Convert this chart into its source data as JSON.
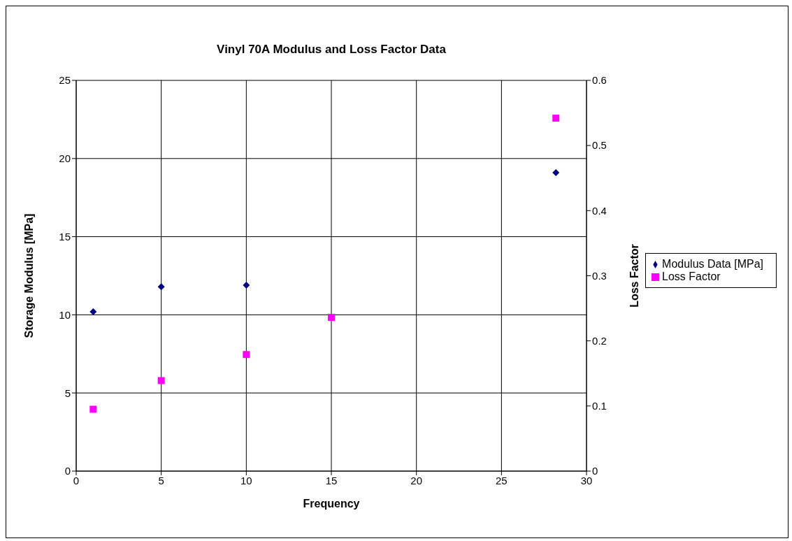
{
  "chart_data": {
    "type": "scatter",
    "title": "Vinyl 70A Modulus and Loss Factor Data",
    "xlabel": "Frequency",
    "ylabel": "Storage Modulus [MPa]",
    "y2label": "Loss Factor",
    "x": [
      1,
      5,
      10,
      15,
      28.2
    ],
    "series": [
      {
        "name": "Modulus Data [MPa]",
        "color": "#000080",
        "marker": "diamond",
        "values": [
          10.2,
          11.8,
          11.9,
          null,
          19.1
        ]
      },
      {
        "name": "Loss Factor",
        "color": "#ff00ff",
        "marker": "square",
        "axis": "y2",
        "values": [
          0.095,
          0.139,
          0.179,
          0.236,
          0.542
        ]
      }
    ],
    "xlim": [
      0,
      30
    ],
    "xticks": [
      0,
      5,
      10,
      15,
      20,
      25,
      30
    ],
    "ylim": [
      0,
      25
    ],
    "yticks": [
      0,
      5,
      10,
      15,
      20,
      25
    ],
    "y2lim": [
      0,
      0.6
    ],
    "y2ticks": [
      0,
      0.1,
      0.2,
      0.3,
      0.4,
      0.5,
      0.6
    ],
    "grid": true,
    "legend": "right"
  }
}
